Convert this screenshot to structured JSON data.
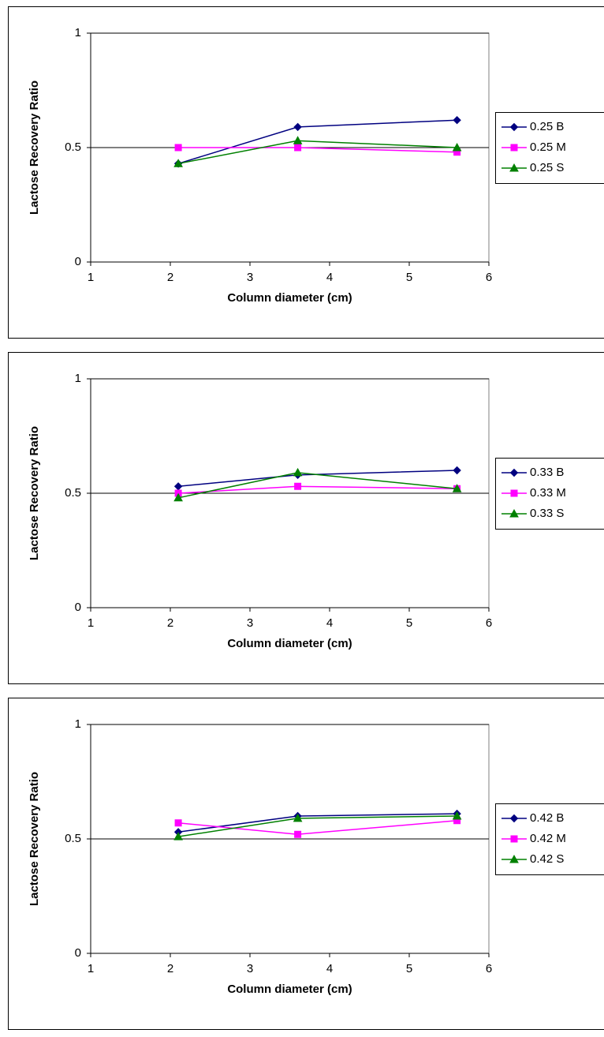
{
  "chart_data": [
    {
      "type": "line",
      "x_label": "Column diameter (cm)",
      "y_label": "Lactose Recovery Ratio",
      "x": [
        2.1,
        3.6,
        5.6
      ],
      "xlim": [
        1,
        6
      ],
      "xticks": [
        1,
        2,
        3,
        4,
        5,
        6
      ],
      "ylim": [
        0,
        1
      ],
      "yticks": [
        0,
        0.5,
        1
      ],
      "grid": true,
      "legend": "right",
      "series": [
        {
          "name": "0.25 B",
          "color": "#000080",
          "marker": "diamond",
          "values": [
            0.43,
            0.59,
            0.62
          ]
        },
        {
          "name": "0.25 M",
          "color": "#ff00ff",
          "marker": "square",
          "values": [
            0.5,
            0.5,
            0.48
          ]
        },
        {
          "name": "0.25 S",
          "color": "#008000",
          "marker": "triangle",
          "values": [
            0.43,
            0.53,
            0.5
          ]
        }
      ]
    },
    {
      "type": "line",
      "x_label": "Column diameter (cm)",
      "y_label": "Lactose Recovery Ratio",
      "x": [
        2.1,
        3.6,
        5.6
      ],
      "xlim": [
        1,
        6
      ],
      "xticks": [
        1,
        2,
        3,
        4,
        5,
        6
      ],
      "ylim": [
        0,
        1
      ],
      "yticks": [
        0,
        0.5,
        1
      ],
      "grid": true,
      "legend": "right",
      "series": [
        {
          "name": "0.33 B",
          "color": "#000080",
          "marker": "diamond",
          "values": [
            0.53,
            0.58,
            0.6
          ]
        },
        {
          "name": "0.33 M",
          "color": "#ff00ff",
          "marker": "square",
          "values": [
            0.5,
            0.53,
            0.52
          ]
        },
        {
          "name": "0.33 S",
          "color": "#008000",
          "marker": "triangle",
          "values": [
            0.48,
            0.59,
            0.52
          ]
        }
      ]
    },
    {
      "type": "line",
      "x_label": "Column diameter (cm)",
      "y_label": "Lactose Recovery Ratio",
      "x": [
        2.1,
        3.6,
        5.6
      ],
      "xlim": [
        1,
        6
      ],
      "xticks": [
        1,
        2,
        3,
        4,
        5,
        6
      ],
      "ylim": [
        0,
        1
      ],
      "yticks": [
        0,
        0.5,
        1
      ],
      "grid": true,
      "legend": "right",
      "series": [
        {
          "name": "0.42 B",
          "color": "#000080",
          "marker": "diamond",
          "values": [
            0.53,
            0.6,
            0.61
          ]
        },
        {
          "name": "0.42 M",
          "color": "#ff00ff",
          "marker": "square",
          "values": [
            0.57,
            0.52,
            0.58
          ]
        },
        {
          "name": "0.42 S",
          "color": "#008000",
          "marker": "triangle",
          "values": [
            0.51,
            0.59,
            0.6
          ]
        }
      ]
    }
  ]
}
